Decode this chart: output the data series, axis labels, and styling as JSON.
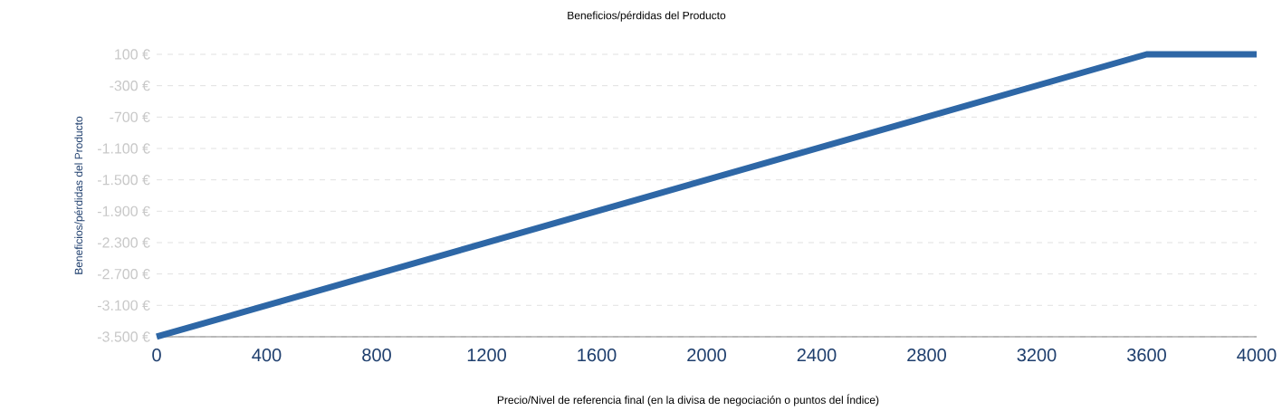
{
  "chart_data": {
    "type": "line",
    "title": "Beneficios/pérdidas del Producto",
    "xlabel": "Precio/Nivel de referencia final (en la divisa de negociación o puntos del Índice)",
    "ylabel": "Beneficios/pérdidas del Producto",
    "series": [
      {
        "color": "#2e67a6",
        "x": [
          0,
          3600,
          4000
        ],
        "values": [
          -3500,
          100,
          100
        ]
      }
    ],
    "xlim": [
      0,
      4000
    ],
    "ylim": [
      -3500,
      100
    ],
    "xticks": [
      0,
      400,
      800,
      1200,
      1600,
      2000,
      2400,
      2800,
      3200,
      3600,
      4000
    ],
    "yticks": [
      {
        "value": 100,
        "label": "100 €"
      },
      {
        "value": -300,
        "label": "-300 €"
      },
      {
        "value": -700,
        "label": "-700 €"
      },
      {
        "value": -1100,
        "label": "-1.100 €"
      },
      {
        "value": -1500,
        "label": "-1.500 €"
      },
      {
        "value": -1900,
        "label": "-1.900 €"
      },
      {
        "value": -2300,
        "label": "-2.300 €"
      },
      {
        "value": -2700,
        "label": "-2.700 €"
      },
      {
        "value": -3100,
        "label": "-3.100 €"
      },
      {
        "value": -3500,
        "label": "-3.500 €"
      }
    ],
    "grid": "y"
  }
}
